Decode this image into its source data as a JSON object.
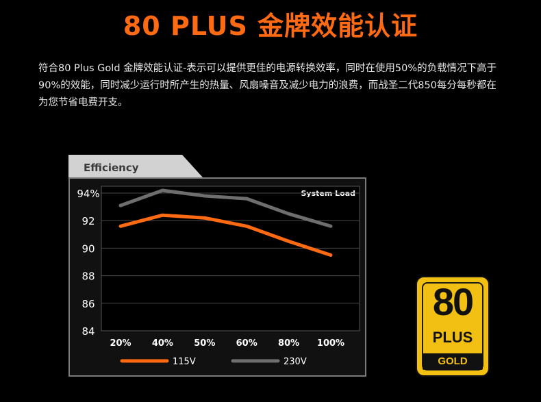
{
  "page": {
    "title": "80 PLUS 金牌效能认证",
    "description": "符合80 Plus Gold 金牌效能认证-表示可以提供更佳的电源转换效率，同时在使用50%的负载情况下高于90%的效能，同时减少运行时所产生的热量、风扇噪音及减少电力的浪费，而战圣二代850每分每秒都在为您节省电费开支。"
  },
  "chart_data": {
    "type": "line",
    "title": "Efficiency",
    "subtitle": "System Load",
    "categories": [
      "20%",
      "40%",
      "50%",
      "60%",
      "80%",
      "100%"
    ],
    "y_ticks": [
      "94%",
      "92",
      "90",
      "88",
      "86",
      "84"
    ],
    "y_tick_values": [
      94,
      92,
      90,
      88,
      86,
      84
    ],
    "ylim": [
      84,
      94.5
    ],
    "grid": true,
    "legend_position": "bottom",
    "series": [
      {
        "name": "115V",
        "values": [
          91.6,
          92.4,
          92.2,
          91.6,
          90.5,
          89.5
        ],
        "color": "#ff6a13"
      },
      {
        "name": "230V",
        "values": [
          93.1,
          94.2,
          93.8,
          93.6,
          92.5,
          91.6
        ],
        "color": "#6e6e6e"
      }
    ]
  },
  "badge": {
    "number": "80",
    "plus": "PLUS",
    "level": "GOLD",
    "color": "#f2c012"
  }
}
